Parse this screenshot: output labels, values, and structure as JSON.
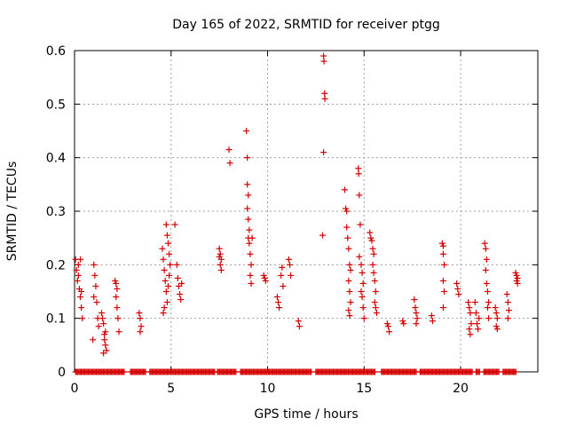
{
  "chart_data": {
    "type": "scatter",
    "title": "Day 165 of 2022, SRMTID for receiver ptgg",
    "xlabel": "GPS time / hours",
    "ylabel": "SRMTID / TECUs",
    "xlim": [
      0,
      24
    ],
    "ylim": [
      0,
      0.6
    ],
    "x_ticks": [
      "0",
      "5",
      "10",
      "15",
      "20"
    ],
    "y_ticks": [
      "0",
      "0.1",
      "0.2",
      "0.3",
      "0.4",
      "0.5",
      "0.6"
    ],
    "grid": true,
    "series": [
      {
        "name": "SRMTID",
        "color": "#d40000",
        "marker": "plus",
        "points": [
          [
            0.05,
            0.21
          ],
          [
            0.1,
            0.19
          ],
          [
            0.15,
            0.17
          ],
          [
            0.2,
            0.2
          ],
          [
            0.25,
            0.155
          ],
          [
            0.3,
            0.14
          ],
          [
            0.35,
            0.12
          ],
          [
            0.4,
            0.1
          ],
          [
            0.2,
            0.18
          ],
          [
            0.3,
            0.21
          ],
          [
            0.35,
            0.15
          ],
          [
            0.95,
            0.06
          ],
          [
            1.0,
            0.2
          ],
          [
            1.05,
            0.18
          ],
          [
            1.1,
            0.16
          ],
          [
            1.15,
            0.13
          ],
          [
            1.2,
            0.1
          ],
          [
            1.25,
            0.085
          ],
          [
            1.0,
            0.14
          ],
          [
            1.4,
            0.11
          ],
          [
            1.45,
            0.1
          ],
          [
            1.5,
            0.09
          ],
          [
            1.55,
            0.07
          ],
          [
            1.6,
            0.05
          ],
          [
            1.65,
            0.04
          ],
          [
            1.5,
            0.035
          ],
          [
            1.55,
            0.06
          ],
          [
            1.6,
            0.075
          ],
          [
            2.1,
            0.17
          ],
          [
            2.15,
            0.165
          ],
          [
            2.2,
            0.155
          ],
          [
            2.2,
            0.12
          ],
          [
            2.25,
            0.1
          ],
          [
            2.3,
            0.075
          ],
          [
            2.15,
            0.14
          ],
          [
            3.35,
            0.11
          ],
          [
            3.4,
            0.1
          ],
          [
            3.45,
            0.085
          ],
          [
            3.4,
            0.075
          ],
          [
            4.55,
            0.23
          ],
          [
            4.6,
            0.21
          ],
          [
            4.65,
            0.19
          ],
          [
            4.7,
            0.17
          ],
          [
            4.75,
            0.15
          ],
          [
            4.8,
            0.13
          ],
          [
            4.6,
            0.11
          ],
          [
            4.65,
            0.12
          ],
          [
            4.75,
            0.275
          ],
          [
            4.8,
            0.255
          ],
          [
            4.85,
            0.24
          ],
          [
            4.9,
            0.22
          ],
          [
            4.95,
            0.2
          ],
          [
            4.9,
            0.18
          ],
          [
            4.85,
            0.16
          ],
          [
            5.2,
            0.275
          ],
          [
            5.3,
            0.2
          ],
          [
            5.35,
            0.175
          ],
          [
            5.4,
            0.16
          ],
          [
            5.45,
            0.145
          ],
          [
            5.5,
            0.135
          ],
          [
            5.55,
            0.165
          ],
          [
            7.5,
            0.23
          ],
          [
            7.55,
            0.22
          ],
          [
            7.6,
            0.21
          ],
          [
            7.55,
            0.2
          ],
          [
            7.6,
            0.19
          ],
          [
            7.5,
            0.215
          ],
          [
            8.0,
            0.415
          ],
          [
            8.05,
            0.39
          ],
          [
            8.9,
            0.45
          ],
          [
            8.95,
            0.4
          ],
          [
            8.95,
            0.35
          ],
          [
            9.0,
            0.33
          ],
          [
            8.95,
            0.305
          ],
          [
            9.0,
            0.285
          ],
          [
            9.05,
            0.265
          ],
          [
            9.0,
            0.25
          ],
          [
            9.05,
            0.24
          ],
          [
            9.1,
            0.22
          ],
          [
            9.15,
            0.2
          ],
          [
            9.1,
            0.18
          ],
          [
            9.15,
            0.165
          ],
          [
            9.2,
            0.25
          ],
          [
            9.8,
            0.18
          ],
          [
            9.85,
            0.175
          ],
          [
            9.9,
            0.17
          ],
          [
            10.5,
            0.14
          ],
          [
            10.55,
            0.13
          ],
          [
            10.6,
            0.12
          ],
          [
            10.7,
            0.18
          ],
          [
            10.75,
            0.195
          ],
          [
            10.8,
            0.16
          ],
          [
            11.1,
            0.21
          ],
          [
            11.15,
            0.2
          ],
          [
            11.2,
            0.18
          ],
          [
            11.6,
            0.095
          ],
          [
            11.65,
            0.085
          ],
          [
            12.9,
            0.59
          ],
          [
            12.92,
            0.58
          ],
          [
            12.95,
            0.52
          ],
          [
            12.97,
            0.51
          ],
          [
            12.9,
            0.41
          ],
          [
            12.85,
            0.255
          ],
          [
            14.0,
            0.34
          ],
          [
            14.05,
            0.305
          ],
          [
            14.1,
            0.3
          ],
          [
            14.1,
            0.27
          ],
          [
            14.15,
            0.25
          ],
          [
            14.2,
            0.23
          ],
          [
            14.25,
            0.2
          ],
          [
            14.3,
            0.19
          ],
          [
            14.2,
            0.17
          ],
          [
            14.25,
            0.15
          ],
          [
            14.3,
            0.13
          ],
          [
            14.2,
            0.115
          ],
          [
            14.25,
            0.105
          ],
          [
            14.7,
            0.38
          ],
          [
            14.72,
            0.37
          ],
          [
            14.75,
            0.33
          ],
          [
            14.8,
            0.275
          ],
          [
            14.75,
            0.215
          ],
          [
            14.85,
            0.2
          ],
          [
            14.9,
            0.185
          ],
          [
            14.95,
            0.165
          ],
          [
            14.85,
            0.15
          ],
          [
            14.9,
            0.14
          ],
          [
            14.95,
            0.12
          ],
          [
            15.0,
            0.1
          ],
          [
            15.3,
            0.26
          ],
          [
            15.35,
            0.25
          ],
          [
            15.4,
            0.245
          ],
          [
            15.45,
            0.23
          ],
          [
            15.5,
            0.22
          ],
          [
            15.45,
            0.2
          ],
          [
            15.5,
            0.185
          ],
          [
            15.55,
            0.17
          ],
          [
            15.6,
            0.15
          ],
          [
            15.55,
            0.13
          ],
          [
            15.6,
            0.12
          ],
          [
            15.65,
            0.11
          ],
          [
            16.2,
            0.09
          ],
          [
            16.25,
            0.085
          ],
          [
            16.3,
            0.075
          ],
          [
            17.0,
            0.095
          ],
          [
            17.05,
            0.09
          ],
          [
            17.6,
            0.135
          ],
          [
            17.65,
            0.12
          ],
          [
            17.7,
            0.11
          ],
          [
            17.75,
            0.1
          ],
          [
            17.7,
            0.09
          ],
          [
            18.5,
            0.105
          ],
          [
            18.55,
            0.095
          ],
          [
            19.05,
            0.24
          ],
          [
            19.1,
            0.235
          ],
          [
            19.1,
            0.22
          ],
          [
            19.15,
            0.2
          ],
          [
            19.1,
            0.17
          ],
          [
            19.15,
            0.15
          ],
          [
            19.1,
            0.12
          ],
          [
            19.8,
            0.165
          ],
          [
            19.85,
            0.155
          ],
          [
            19.9,
            0.145
          ],
          [
            20.4,
            0.13
          ],
          [
            20.45,
            0.12
          ],
          [
            20.5,
            0.11
          ],
          [
            20.45,
            0.08
          ],
          [
            20.5,
            0.07
          ],
          [
            20.55,
            0.09
          ],
          [
            20.75,
            0.13
          ],
          [
            20.8,
            0.11
          ],
          [
            20.85,
            0.09
          ],
          [
            20.9,
            0.08
          ],
          [
            20.95,
            0.1
          ],
          [
            21.25,
            0.24
          ],
          [
            21.3,
            0.23
          ],
          [
            21.35,
            0.21
          ],
          [
            21.3,
            0.19
          ],
          [
            21.35,
            0.165
          ],
          [
            21.4,
            0.15
          ],
          [
            21.45,
            0.13
          ],
          [
            21.4,
            0.12
          ],
          [
            21.45,
            0.1
          ],
          [
            21.8,
            0.12
          ],
          [
            21.85,
            0.11
          ],
          [
            21.9,
            0.1
          ],
          [
            21.85,
            0.085
          ],
          [
            21.9,
            0.08
          ],
          [
            22.4,
            0.145
          ],
          [
            22.45,
            0.13
          ],
          [
            22.5,
            0.115
          ],
          [
            22.45,
            0.1
          ],
          [
            22.85,
            0.185
          ],
          [
            22.9,
            0.18
          ],
          [
            22.95,
            0.175
          ],
          [
            22.9,
            0.17
          ],
          [
            22.95,
            0.165
          ]
        ],
        "zero_ranges": [
          [
            0.05,
            2.6
          ],
          [
            2.9,
            3.7
          ],
          [
            3.9,
            7.3
          ],
          [
            7.4,
            8.4
          ],
          [
            8.6,
            12.3
          ],
          [
            12.5,
            15.6
          ],
          [
            15.9,
            17.7
          ],
          [
            17.9,
            20.6
          ],
          [
            20.8,
            21.0
          ],
          [
            21.2,
            22.0
          ],
          [
            22.2,
            22.9
          ]
        ],
        "zero_value": 0
      }
    ]
  }
}
